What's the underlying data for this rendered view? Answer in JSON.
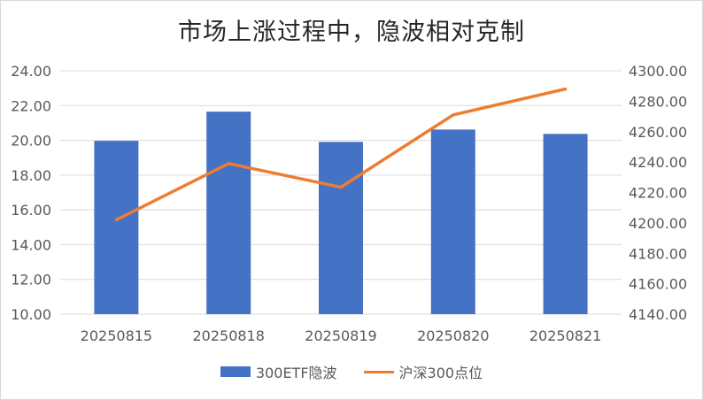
{
  "title": "市场上涨过程中，隐波相对克制",
  "colors": {
    "bar": "#4472c4",
    "line": "#ed7d31",
    "grid": "#d9d9d9",
    "axis_text": "#595959"
  },
  "chart_data": {
    "type": "bar+line",
    "title": "市场上涨过程中，隐波相对克制",
    "categories": [
      "20250815",
      "20250818",
      "20250819",
      "20250820",
      "20250821"
    ],
    "series": [
      {
        "name": "300ETF隐波",
        "type": "bar",
        "axis": "left",
        "values": [
          19.97,
          21.65,
          19.91,
          20.62,
          20.37
        ]
      },
      {
        "name": "沪深300点位",
        "type": "line",
        "axis": "right",
        "values": [
          4202.0,
          4239.0,
          4223.5,
          4271.0,
          4288.0
        ]
      }
    ],
    "y_left": {
      "ylim": [
        10,
        24
      ],
      "ticks": [
        "10.00",
        "12.00",
        "14.00",
        "16.00",
        "18.00",
        "20.00",
        "22.00",
        "24.00"
      ]
    },
    "y_right": {
      "ylim": [
        4140,
        4300
      ],
      "ticks": [
        "4140.00",
        "4160.00",
        "4180.00",
        "4200.00",
        "4220.00",
        "4240.00",
        "4260.00",
        "4280.00",
        "4300.00"
      ]
    },
    "grid": true,
    "legend_position": "bottom"
  }
}
